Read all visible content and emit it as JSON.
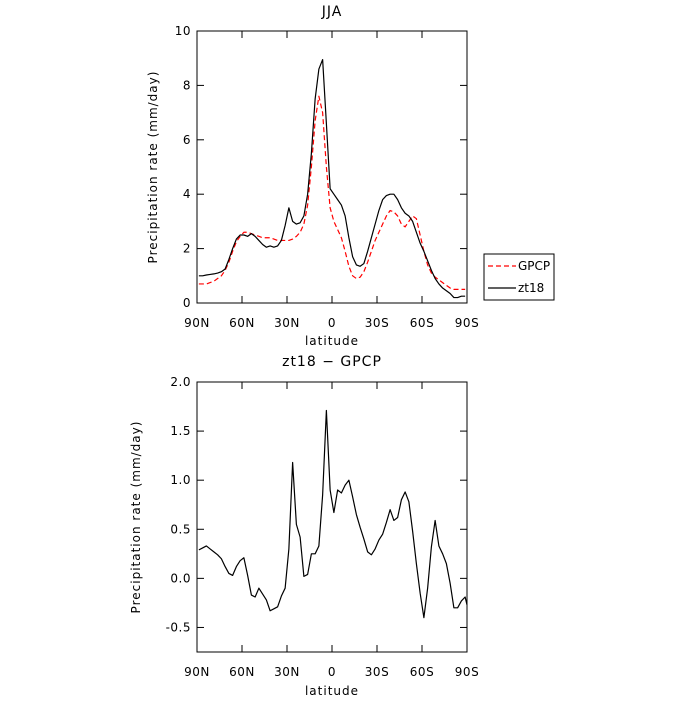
{
  "chart_data": [
    {
      "type": "line",
      "title": "JJA",
      "xlabel": "latitude",
      "ylabel": "Precipitation rate (mm/day)",
      "xlim": [
        90,
        -90
      ],
      "ylim": [
        0,
        10
      ],
      "xticks": [
        90,
        60,
        30,
        0,
        -30,
        -60,
        -90
      ],
      "xtick_labels": [
        "90N",
        "60N",
        "30N",
        "0",
        "30S",
        "60S",
        "90S"
      ],
      "yticks": [
        0,
        2,
        4,
        6,
        8,
        10
      ],
      "ytick_labels": [
        "0",
        "2",
        "4",
        "6",
        "8",
        "10"
      ],
      "grid": false,
      "legend": "right",
      "series": [
        {
          "name": "GPCP",
          "color": "#ff0000",
          "dash": "dashed",
          "points": [
            [
              88.75,
              0.7
            ],
            [
              86.25,
              0.7
            ],
            [
              83.75,
              0.7
            ],
            [
              81.25,
              0.75
            ],
            [
              78.75,
              0.8
            ],
            [
              76.25,
              0.9
            ],
            [
              73.75,
              1.0
            ],
            [
              71.25,
              1.2
            ],
            [
              68.75,
              1.5
            ],
            [
              66.25,
              1.9
            ],
            [
              63.75,
              2.25
            ],
            [
              61.25,
              2.45
            ],
            [
              58.75,
              2.6
            ],
            [
              56.25,
              2.6
            ],
            [
              53.75,
              2.55
            ],
            [
              51.25,
              2.5
            ],
            [
              48.75,
              2.45
            ],
            [
              46.25,
              2.4
            ],
            [
              43.75,
              2.4
            ],
            [
              41.25,
              2.4
            ],
            [
              38.75,
              2.35
            ],
            [
              36.25,
              2.3
            ],
            [
              33.75,
              2.3
            ],
            [
              31.25,
              2.3
            ],
            [
              28.75,
              2.3
            ],
            [
              26.25,
              2.35
            ],
            [
              23.75,
              2.45
            ],
            [
              21.25,
              2.6
            ],
            [
              18.75,
              2.9
            ],
            [
              16.25,
              3.6
            ],
            [
              13.75,
              5.0
            ],
            [
              11.25,
              6.7
            ],
            [
              8.75,
              7.6
            ],
            [
              6.25,
              7.0
            ],
            [
              3.75,
              5.0
            ],
            [
              1.25,
              3.5
            ],
            [
              -1.25,
              3.0
            ],
            [
              -3.75,
              2.7
            ],
            [
              -6.25,
              2.4
            ],
            [
              -8.75,
              1.9
            ],
            [
              -11.25,
              1.35
            ],
            [
              -13.75,
              1.0
            ],
            [
              -16.25,
              0.9
            ],
            [
              -18.75,
              0.95
            ],
            [
              -21.25,
              1.15
            ],
            [
              -23.75,
              1.5
            ],
            [
              -26.25,
              1.9
            ],
            [
              -28.75,
              2.3
            ],
            [
              -31.25,
              2.6
            ],
            [
              -33.75,
              2.9
            ],
            [
              -36.25,
              3.2
            ],
            [
              -38.75,
              3.4
            ],
            [
              -41.25,
              3.35
            ],
            [
              -43.75,
              3.2
            ],
            [
              -46.25,
              2.9
            ],
            [
              -48.75,
              2.8
            ],
            [
              -51.25,
              3.0
            ],
            [
              -53.75,
              3.2
            ],
            [
              -56.25,
              3.1
            ],
            [
              -58.75,
              2.5
            ],
            [
              -61.25,
              1.9
            ],
            [
              -63.75,
              1.4
            ],
            [
              -66.25,
              1.1
            ],
            [
              -68.75,
              0.95
            ],
            [
              -71.25,
              0.85
            ],
            [
              -73.75,
              0.75
            ],
            [
              -76.25,
              0.65
            ],
            [
              -78.75,
              0.55
            ],
            [
              -81.25,
              0.5
            ],
            [
              -83.75,
              0.5
            ],
            [
              -86.25,
              0.5
            ],
            [
              -88.75,
              0.5
            ]
          ]
        },
        {
          "name": "zt18",
          "color": "#000000",
          "dash": "solid",
          "points": [
            [
              88.75,
              1.0
            ],
            [
              86.25,
              1.0
            ],
            [
              83.75,
              1.03
            ],
            [
              81.25,
              1.05
            ],
            [
              78.75,
              1.07
            ],
            [
              76.25,
              1.1
            ],
            [
              73.75,
              1.15
            ],
            [
              71.25,
              1.25
            ],
            [
              68.75,
              1.6
            ],
            [
              66.25,
              2.0
            ],
            [
              63.75,
              2.35
            ],
            [
              61.25,
              2.5
            ],
            [
              58.75,
              2.5
            ],
            [
              56.25,
              2.45
            ],
            [
              53.75,
              2.55
            ],
            [
              51.25,
              2.45
            ],
            [
              48.75,
              2.3
            ],
            [
              46.25,
              2.15
            ],
            [
              43.75,
              2.05
            ],
            [
              41.25,
              2.1
            ],
            [
              38.75,
              2.05
            ],
            [
              36.25,
              2.1
            ],
            [
              33.75,
              2.3
            ],
            [
              31.25,
              2.85
            ],
            [
              28.75,
              3.5
            ],
            [
              26.25,
              3.0
            ],
            [
              23.75,
              2.9
            ],
            [
              21.25,
              2.95
            ],
            [
              18.75,
              3.2
            ],
            [
              16.25,
              4.0
            ],
            [
              13.75,
              5.5
            ],
            [
              11.25,
              7.5
            ],
            [
              8.75,
              8.6
            ],
            [
              6.25,
              8.95
            ],
            [
              3.75,
              6.6
            ],
            [
              1.25,
              4.2
            ],
            [
              -1.25,
              4.0
            ],
            [
              -3.75,
              3.8
            ],
            [
              -6.25,
              3.6
            ],
            [
              -8.75,
              3.2
            ],
            [
              -11.25,
              2.4
            ],
            [
              -13.75,
              1.7
            ],
            [
              -16.25,
              1.4
            ],
            [
              -18.75,
              1.35
            ],
            [
              -21.25,
              1.45
            ],
            [
              -23.75,
              1.9
            ],
            [
              -26.25,
              2.4
            ],
            [
              -28.75,
              2.9
            ],
            [
              -31.25,
              3.4
            ],
            [
              -33.75,
              3.8
            ],
            [
              -36.25,
              3.95
            ],
            [
              -38.75,
              4.0
            ],
            [
              -41.25,
              4.0
            ],
            [
              -43.75,
              3.8
            ],
            [
              -46.25,
              3.5
            ],
            [
              -48.75,
              3.3
            ],
            [
              -51.25,
              3.2
            ],
            [
              -53.75,
              3.0
            ],
            [
              -56.25,
              2.6
            ],
            [
              -58.75,
              2.2
            ],
            [
              -61.25,
              1.9
            ],
            [
              -63.75,
              1.55
            ],
            [
              -66.25,
              1.2
            ],
            [
              -68.75,
              0.9
            ],
            [
              -71.25,
              0.7
            ],
            [
              -73.75,
              0.55
            ],
            [
              -76.25,
              0.45
            ],
            [
              -78.75,
              0.35
            ],
            [
              -81.25,
              0.2
            ],
            [
              -83.75,
              0.2
            ],
            [
              -86.25,
              0.25
            ],
            [
              -88.75,
              0.25
            ]
          ]
        }
      ]
    },
    {
      "type": "line",
      "title": "zt18 − GPCP",
      "xlabel": "latitude",
      "ylabel": "Precipitation rate (mm/day)",
      "xlim": [
        90,
        -90
      ],
      "ylim": [
        -0.75,
        2.0
      ],
      "xticks": [
        90,
        60,
        30,
        0,
        -30,
        -60,
        -90
      ],
      "xtick_labels": [
        "90N",
        "60N",
        "30N",
        "0",
        "30S",
        "60S",
        "90S"
      ],
      "yticks": [
        -0.5,
        0,
        0.5,
        1.0,
        1.5,
        2.0
      ],
      "ytick_labels": [
        "-0.5",
        "0.0",
        "0.5",
        "1.0",
        "1.5",
        "2.0"
      ],
      "grid": false,
      "series": [
        {
          "color": "#000000",
          "dash": "solid",
          "points": [
            [
              88.75,
              0.29
            ],
            [
              86.25,
              0.31
            ],
            [
              83.75,
              0.33
            ],
            [
              81.25,
              0.3
            ],
            [
              78.75,
              0.27
            ],
            [
              76.25,
              0.24
            ],
            [
              73.75,
              0.2
            ],
            [
              71.25,
              0.12
            ],
            [
              68.75,
              0.05
            ],
            [
              66.25,
              0.03
            ],
            [
              63.75,
              0.12
            ],
            [
              61.25,
              0.18
            ],
            [
              58.75,
              0.21
            ],
            [
              56.25,
              0.03
            ],
            [
              53.75,
              -0.17
            ],
            [
              51.25,
              -0.19
            ],
            [
              48.75,
              -0.1
            ],
            [
              46.25,
              -0.16
            ],
            [
              43.75,
              -0.22
            ],
            [
              41.25,
              -0.33
            ],
            [
              38.75,
              -0.31
            ],
            [
              36.25,
              -0.29
            ],
            [
              33.75,
              -0.18
            ],
            [
              31.25,
              -0.1
            ],
            [
              28.75,
              0.3
            ],
            [
              26.25,
              1.18
            ],
            [
              23.75,
              0.55
            ],
            [
              21.25,
              0.42
            ],
            [
              18.75,
              0.02
            ],
            [
              16.25,
              0.04
            ],
            [
              13.75,
              0.25
            ],
            [
              11.25,
              0.25
            ],
            [
              8.75,
              0.33
            ],
            [
              6.25,
              0.85
            ],
            [
              3.75,
              1.71
            ],
            [
              1.25,
              0.9
            ],
            [
              -1.25,
              0.67
            ],
            [
              -3.75,
              0.9
            ],
            [
              -6.25,
              0.87
            ],
            [
              -8.75,
              0.95
            ],
            [
              -11.25,
              1.0
            ],
            [
              -13.75,
              0.83
            ],
            [
              -16.25,
              0.65
            ],
            [
              -18.75,
              0.52
            ],
            [
              -21.25,
              0.4
            ],
            [
              -23.75,
              0.27
            ],
            [
              -26.25,
              0.24
            ],
            [
              -28.75,
              0.3
            ],
            [
              -31.25,
              0.39
            ],
            [
              -33.75,
              0.45
            ],
            [
              -36.25,
              0.57
            ],
            [
              -38.75,
              0.7
            ],
            [
              -41.25,
              0.59
            ],
            [
              -43.75,
              0.62
            ],
            [
              -46.25,
              0.8
            ],
            [
              -48.75,
              0.88
            ],
            [
              -51.25,
              0.78
            ],
            [
              -53.75,
              0.48
            ],
            [
              -56.25,
              0.15
            ],
            [
              -58.75,
              -0.15
            ],
            [
              -61.25,
              -0.4
            ],
            [
              -63.75,
              -0.1
            ],
            [
              -66.25,
              0.32
            ],
            [
              -68.75,
              0.59
            ],
            [
              -71.25,
              0.33
            ],
            [
              -73.75,
              0.25
            ],
            [
              -76.25,
              0.15
            ],
            [
              -78.75,
              -0.05
            ],
            [
              -81.25,
              -0.3
            ],
            [
              -83.75,
              -0.3
            ],
            [
              -86.25,
              -0.23
            ],
            [
              -88.75,
              -0.19
            ],
            [
              -90.0,
              -0.27
            ]
          ]
        }
      ]
    }
  ]
}
